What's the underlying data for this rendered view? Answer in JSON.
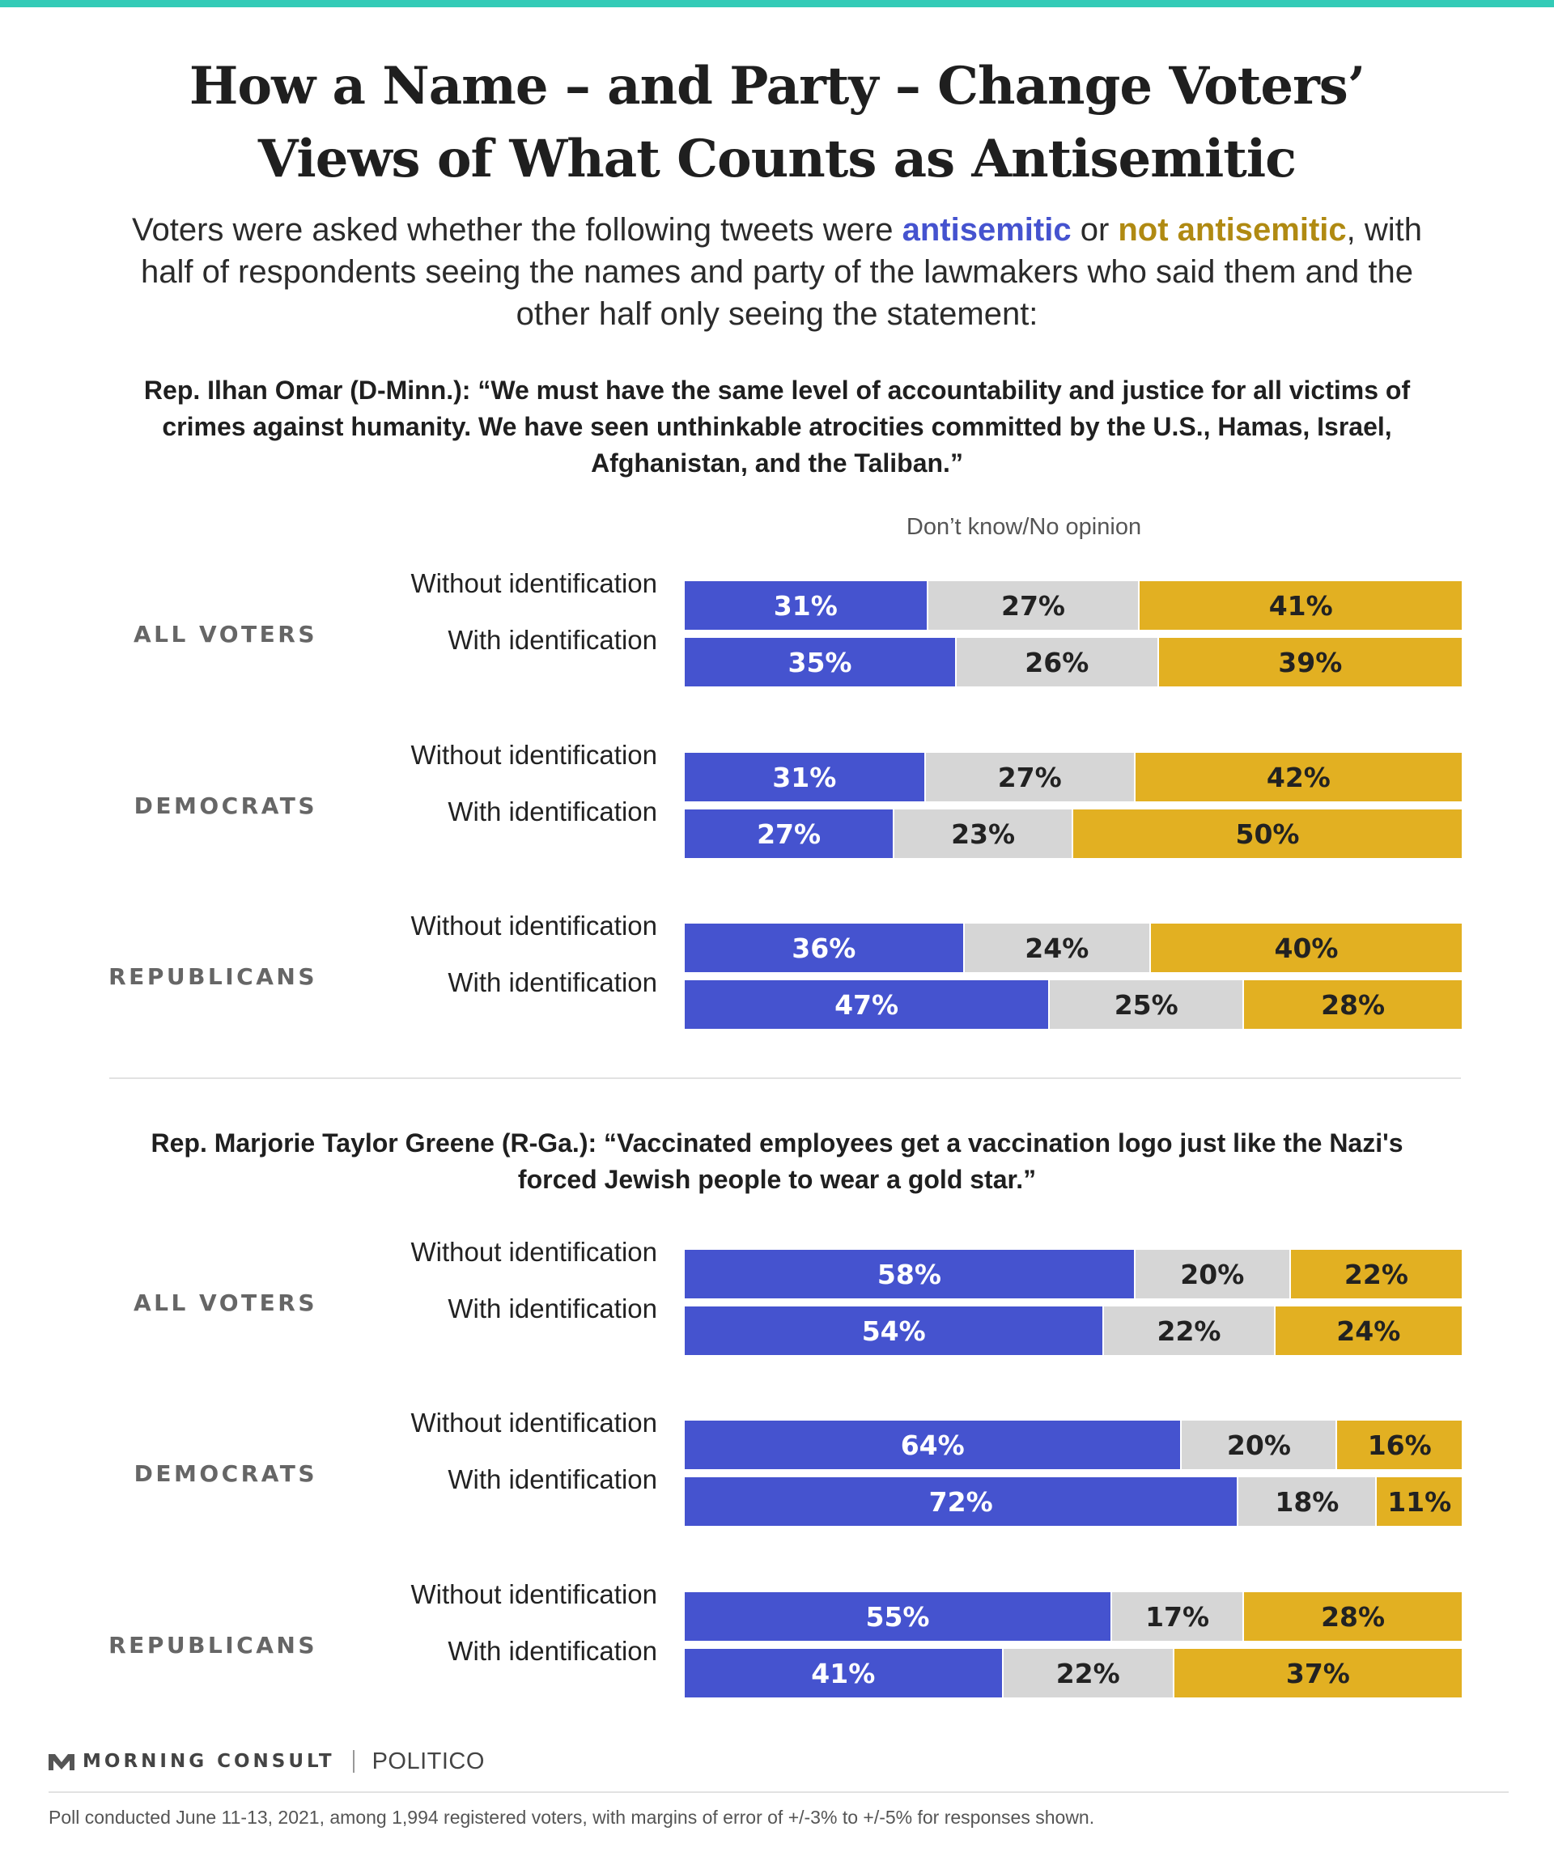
{
  "title": {
    "line1": "How a Name – and Party – Change Voters’",
    "line2": "Views of What Counts as Antisemitic"
  },
  "subtitle": {
    "part1": "Voters were asked whether the following tweets were ",
    "highlight_yes": "antisemitic",
    "part2": " or ",
    "highlight_no": "not antisemitic",
    "part3": ", with half of respondents seeing the names and party of the lawmakers who said them and the other half only seeing the statement:"
  },
  "legend": {
    "middle_label": "Don’t know/No opinion"
  },
  "colors": {
    "antisemitic": "#4553cf",
    "dont_know": "#d6d6d6",
    "not_antisemitic": "#e2b022",
    "accent_bar": "#33cbb7"
  },
  "chart_data": [
    {
      "type": "bar",
      "stacked": true,
      "orientation": "horizontal",
      "title": "Rep. Ilhan Omar (D-Minn.): “We must have the same level of accountability and justice for all victims of crimes against humanity. We have seen unthinkable atrocities committed by the U.S., Hamas, Israel, Afghanistan, and the Taliban.”",
      "series_order": [
        "antisemitic",
        "Don’t know/No opinion",
        "not antisemitic"
      ],
      "groups": [
        {
          "label": "ALL VOTERS",
          "rows": [
            {
              "label": "Without identification",
              "values": [
                31,
                27,
                41
              ]
            },
            {
              "label": "With identification",
              "values": [
                35,
                26,
                39
              ]
            }
          ]
        },
        {
          "label": "DEMOCRATS",
          "rows": [
            {
              "label": "Without identification",
              "values": [
                31,
                27,
                42
              ]
            },
            {
              "label": "With identification",
              "values": [
                27,
                23,
                50
              ]
            }
          ]
        },
        {
          "label": "REPUBLICANS",
          "rows": [
            {
              "label": "Without identification",
              "values": [
                36,
                24,
                40
              ]
            },
            {
              "label": "With identification",
              "values": [
                47,
                25,
                28
              ]
            }
          ]
        }
      ]
    },
    {
      "type": "bar",
      "stacked": true,
      "orientation": "horizontal",
      "title": "Rep. Marjorie Taylor Greene (R-Ga.): “Vaccinated employees get a vaccination logo just like the Nazi's forced Jewish people to wear a gold star.”",
      "series_order": [
        "antisemitic",
        "Don’t know/No opinion",
        "not antisemitic"
      ],
      "groups": [
        {
          "label": "ALL VOTERS",
          "rows": [
            {
              "label": "Without identification",
              "values": [
                58,
                20,
                22
              ]
            },
            {
              "label": "With identification",
              "values": [
                54,
                22,
                24
              ]
            }
          ]
        },
        {
          "label": "DEMOCRATS",
          "rows": [
            {
              "label": "Without identification",
              "values": [
                64,
                20,
                16
              ]
            },
            {
              "label": "With identification",
              "values": [
                72,
                18,
                11
              ]
            }
          ]
        },
        {
          "label": "REPUBLICANS",
          "rows": [
            {
              "label": "Without identification",
              "values": [
                55,
                17,
                28
              ]
            },
            {
              "label": "With identification",
              "values": [
                41,
                22,
                37
              ]
            }
          ]
        }
      ]
    }
  ],
  "footer": {
    "brand1": "MORNING CONSULT",
    "brand2": "POLITICO",
    "note": "Poll conducted June 11-13, 2021, among 1,994 registered voters, with margins of error of +/-3% to +/-5% for responses shown."
  }
}
